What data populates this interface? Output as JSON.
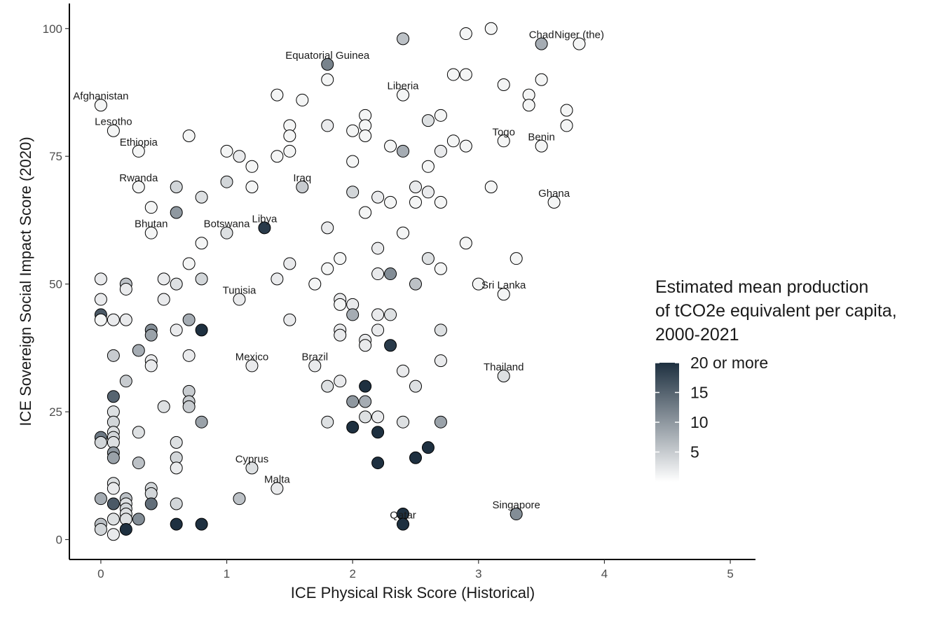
{
  "chart_data": {
    "type": "scatter",
    "xlabel": "ICE Physical Risk Score (Historical)",
    "ylabel": "ICE Sovereign Social Impact Score (2020)",
    "xlim": [
      -0.25,
      5.2
    ],
    "ylim": [
      -3.9,
      104.9
    ],
    "x_ticks": [
      0,
      1,
      2,
      3,
      4,
      5
    ],
    "y_ticks": [
      0,
      25,
      50,
      75,
      100
    ],
    "grid": false,
    "legend": {
      "title_lines": [
        "Estimated mean production",
        "of tCO2e equivalent per capita,",
        "2000-2021"
      ],
      "ticks": [
        {
          "value": 5,
          "label": "5"
        },
        {
          "value": 10,
          "label": "10"
        },
        {
          "value": 15,
          "label": "15"
        },
        {
          "value": 20,
          "label": "20 or more"
        }
      ],
      "range": [
        0,
        20
      ],
      "color_low": "#ffffff",
      "color_high": "#1e3040",
      "position": "right"
    },
    "labels": [
      {
        "text": "Niger (the)",
        "x": 3.8,
        "y": 97
      },
      {
        "text": "Chad",
        "x": 3.5,
        "y": 97
      },
      {
        "text": "Equatorial Guinea",
        "x": 1.8,
        "y": 93
      },
      {
        "text": "Afghanistan",
        "x": 0,
        "y": 85
      },
      {
        "text": "Liberia",
        "x": 2.4,
        "y": 87
      },
      {
        "text": "Lesotho",
        "x": 0.1,
        "y": 80
      },
      {
        "text": "Benin",
        "x": 3.5,
        "y": 77
      },
      {
        "text": "Ethiopia",
        "x": 0.3,
        "y": 76
      },
      {
        "text": "Togo",
        "x": 3.2,
        "y": 78
      },
      {
        "text": "Iraq",
        "x": 1.6,
        "y": 69
      },
      {
        "text": "Rwanda",
        "x": 0.3,
        "y": 69
      },
      {
        "text": "Ghana",
        "x": 3.6,
        "y": 66
      },
      {
        "text": "Libya",
        "x": 1.3,
        "y": 61
      },
      {
        "text": "Bhutan",
        "x": 0.4,
        "y": 60
      },
      {
        "text": "Botswana",
        "x": 1.0,
        "y": 60
      },
      {
        "text": "Tunisia",
        "x": 1.1,
        "y": 47
      },
      {
        "text": "Sri Lanka",
        "x": 3.2,
        "y": 48
      },
      {
        "text": "Brazil",
        "x": 1.7,
        "y": 34
      },
      {
        "text": "Mexico",
        "x": 1.2,
        "y": 34
      },
      {
        "text": "Thailand",
        "x": 3.2,
        "y": 32
      },
      {
        "text": "Cyprus",
        "x": 1.2,
        "y": 14
      },
      {
        "text": "Malta",
        "x": 1.4,
        "y": 10
      },
      {
        "text": "Singapore",
        "x": 3.3,
        "y": 5
      },
      {
        "text": "Qatar",
        "x": 2.4,
        "y": 3
      }
    ],
    "points": [
      [
        3.1,
        100,
        1
      ],
      [
        2.9,
        99,
        1
      ],
      [
        2.4,
        98,
        6
      ],
      [
        3.8,
        97,
        1
      ],
      [
        3.5,
        97,
        8
      ],
      [
        1.8,
        93,
        12
      ],
      [
        2.8,
        91,
        1
      ],
      [
        2.9,
        91,
        1
      ],
      [
        1.8,
        90,
        1
      ],
      [
        3.5,
        90,
        1
      ],
      [
        3.2,
        89,
        1
      ],
      [
        1.4,
        87,
        1
      ],
      [
        2.4,
        87,
        1
      ],
      [
        3.4,
        87,
        1
      ],
      [
        1.6,
        86,
        1
      ],
      [
        0,
        85,
        1
      ],
      [
        3.4,
        85,
        1
      ],
      [
        3.7,
        84,
        1
      ],
      [
        2.1,
        83,
        1
      ],
      [
        2.7,
        83,
        1
      ],
      [
        2.6,
        82,
        3
      ],
      [
        1.5,
        81,
        1
      ],
      [
        1.8,
        81,
        2
      ],
      [
        2.1,
        81,
        1
      ],
      [
        3.7,
        81,
        1
      ],
      [
        0.1,
        80,
        1
      ],
      [
        2.0,
        80,
        1
      ],
      [
        0.7,
        79,
        1
      ],
      [
        1.5,
        79,
        1
      ],
      [
        2.1,
        79,
        1
      ],
      [
        2.8,
        78,
        1
      ],
      [
        3.2,
        78,
        1
      ],
      [
        2.3,
        77,
        1
      ],
      [
        2.9,
        77,
        1
      ],
      [
        3.5,
        77,
        1
      ],
      [
        0.3,
        76,
        1
      ],
      [
        1.0,
        76,
        1
      ],
      [
        1.5,
        76,
        1
      ],
      [
        2.4,
        76,
        8
      ],
      [
        2.7,
        76,
        2
      ],
      [
        1.1,
        75,
        2
      ],
      [
        1.4,
        75,
        1
      ],
      [
        2.0,
        74,
        1
      ],
      [
        1.2,
        73,
        1
      ],
      [
        2.6,
        73,
        1
      ],
      [
        1.0,
        70,
        4
      ],
      [
        0.3,
        69,
        1
      ],
      [
        0.6,
        69,
        4
      ],
      [
        1.2,
        69,
        1
      ],
      [
        1.6,
        69,
        5
      ],
      [
        2.5,
        69,
        2
      ],
      [
        3.1,
        69,
        1
      ],
      [
        2.0,
        68,
        4
      ],
      [
        2.6,
        68,
        2
      ],
      [
        0.8,
        67,
        3
      ],
      [
        2.2,
        67,
        2
      ],
      [
        2.3,
        66,
        1
      ],
      [
        2.5,
        66,
        1
      ],
      [
        2.7,
        66,
        1
      ],
      [
        3.6,
        66,
        1
      ],
      [
        0.4,
        65,
        1
      ],
      [
        0.6,
        64,
        10
      ],
      [
        2.1,
        64,
        1
      ],
      [
        1.3,
        61,
        19
      ],
      [
        1.8,
        61,
        2
      ],
      [
        0.4,
        60,
        1
      ],
      [
        1.0,
        60,
        3
      ],
      [
        2.4,
        60,
        1
      ],
      [
        0.8,
        58,
        1
      ],
      [
        2.9,
        58,
        1
      ],
      [
        2.2,
        57,
        2
      ],
      [
        1.9,
        55,
        1
      ],
      [
        2.6,
        55,
        3
      ],
      [
        3.3,
        55,
        1
      ],
      [
        0.7,
        54,
        1
      ],
      [
        1.5,
        54,
        2
      ],
      [
        1.8,
        53,
        1
      ],
      [
        2.7,
        53,
        1
      ],
      [
        2.2,
        52,
        2
      ],
      [
        2.3,
        52,
        11
      ],
      [
        0,
        51,
        2
      ],
      [
        0.5,
        51,
        2
      ],
      [
        0.8,
        51,
        4
      ],
      [
        1.4,
        51,
        2
      ],
      [
        0.2,
        50,
        6
      ],
      [
        0.6,
        50,
        3
      ],
      [
        1.7,
        50,
        1
      ],
      [
        2.5,
        50,
        6
      ],
      [
        3.0,
        50,
        1
      ],
      [
        0.2,
        49,
        2
      ],
      [
        3.2,
        48,
        1
      ],
      [
        0,
        47,
        2
      ],
      [
        0.5,
        47,
        2
      ],
      [
        1.1,
        47,
        2
      ],
      [
        1.9,
        47,
        2
      ],
      [
        1.9,
        46,
        1
      ],
      [
        2.0,
        46,
        2
      ],
      [
        0,
        44,
        16
      ],
      [
        2.0,
        44,
        8
      ],
      [
        2.2,
        44,
        2
      ],
      [
        2.3,
        44,
        3
      ],
      [
        0,
        43,
        1
      ],
      [
        0.1,
        43,
        2
      ],
      [
        0.2,
        43,
        2
      ],
      [
        0.7,
        43,
        8
      ],
      [
        1.5,
        43,
        2
      ],
      [
        0.4,
        41,
        11
      ],
      [
        0.6,
        41,
        2
      ],
      [
        0.8,
        41,
        20
      ],
      [
        1.9,
        41,
        2
      ],
      [
        2.2,
        41,
        2
      ],
      [
        2.7,
        41,
        3
      ],
      [
        0.4,
        40,
        9
      ],
      [
        1.9,
        40,
        2
      ],
      [
        2.1,
        39,
        2
      ],
      [
        2.1,
        38,
        2
      ],
      [
        2.3,
        38,
        19
      ],
      [
        0.3,
        37,
        8
      ],
      [
        0.1,
        36,
        5
      ],
      [
        0.7,
        36,
        2
      ],
      [
        0.4,
        35,
        2
      ],
      [
        2.7,
        35,
        2
      ],
      [
        0.4,
        34,
        2
      ],
      [
        1.2,
        34,
        2
      ],
      [
        1.7,
        34,
        2
      ],
      [
        2.4,
        33,
        2
      ],
      [
        3.2,
        32,
        3
      ],
      [
        0.2,
        31,
        5
      ],
      [
        1.9,
        31,
        2
      ],
      [
        1.8,
        30,
        3
      ],
      [
        2.1,
        30,
        20
      ],
      [
        2.5,
        30,
        3
      ],
      [
        0.7,
        29,
        5
      ],
      [
        0.1,
        28,
        15
      ],
      [
        0.7,
        27,
        5
      ],
      [
        2.0,
        27,
        10
      ],
      [
        2.1,
        27,
        8
      ],
      [
        0.5,
        26,
        3
      ],
      [
        0.7,
        26,
        5
      ],
      [
        0.1,
        25,
        3
      ],
      [
        2.1,
        24,
        3
      ],
      [
        2.2,
        24,
        2
      ],
      [
        0.1,
        23,
        4
      ],
      [
        0.8,
        23,
        9
      ],
      [
        1.8,
        23,
        3
      ],
      [
        2.4,
        23,
        3
      ],
      [
        2.7,
        23,
        9
      ],
      [
        2.0,
        22,
        20
      ],
      [
        0.1,
        21,
        3
      ],
      [
        0.3,
        21,
        3
      ],
      [
        2.2,
        21,
        20
      ],
      [
        0,
        20,
        13
      ],
      [
        0.1,
        20,
        4
      ],
      [
        0,
        19,
        4
      ],
      [
        0.1,
        19,
        3
      ],
      [
        0.6,
        19,
        3
      ],
      [
        2.6,
        18,
        20
      ],
      [
        0.1,
        17,
        10
      ],
      [
        0.1,
        16,
        9
      ],
      [
        0.6,
        16,
        4
      ],
      [
        2.5,
        16,
        20
      ],
      [
        0.3,
        15,
        6
      ],
      [
        2.2,
        15,
        20
      ],
      [
        0.6,
        14,
        2
      ],
      [
        1.2,
        14,
        3
      ],
      [
        0.1,
        11,
        3
      ],
      [
        0.1,
        10,
        2
      ],
      [
        0.4,
        10,
        4
      ],
      [
        1.4,
        10,
        2
      ],
      [
        0.4,
        9,
        4
      ],
      [
        0,
        8,
        8
      ],
      [
        0.2,
        8,
        6
      ],
      [
        1.1,
        8,
        6
      ],
      [
        0.1,
        7,
        16
      ],
      [
        0.2,
        7,
        3
      ],
      [
        0.4,
        7,
        14
      ],
      [
        0.6,
        7,
        4
      ],
      [
        0.2,
        6,
        4
      ],
      [
        0.2,
        5,
        3
      ],
      [
        2.4,
        5,
        20
      ],
      [
        3.3,
        5,
        11
      ],
      [
        0.1,
        4,
        3
      ],
      [
        0.2,
        4,
        3
      ],
      [
        0.3,
        4,
        11
      ],
      [
        0,
        3,
        6
      ],
      [
        0.6,
        3,
        20
      ],
      [
        0.8,
        3,
        20
      ],
      [
        2.4,
        3,
        20
      ],
      [
        0,
        2,
        4
      ],
      [
        0.2,
        2,
        20
      ],
      [
        0.1,
        1,
        2
      ]
    ]
  }
}
